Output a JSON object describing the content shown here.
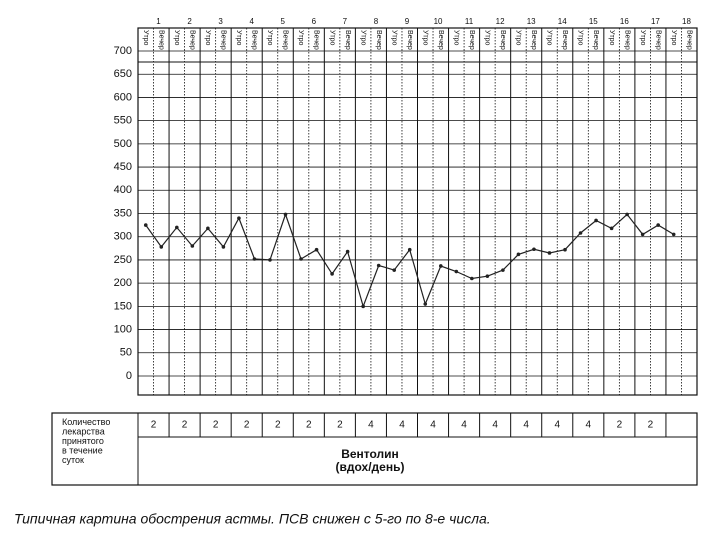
{
  "chart_data": {
    "type": "line",
    "categories": [
      "1",
      "2",
      "3",
      "4",
      "5",
      "6",
      "7",
      "8",
      "9",
      "10",
      "11",
      "12",
      "13",
      "14",
      "15",
      "16",
      "17",
      "18"
    ],
    "series": [
      {
        "name": "Утро",
        "color": "#222222",
        "values": [
          325,
          320,
          318,
          340,
          250,
          252,
          220,
          150,
          228,
          155,
          225,
          215,
          262,
          265,
          308,
          318,
          305,
          305
        ]
      },
      {
        "name": "Вечер",
        "color": "#222222",
        "values": [
          278,
          280,
          278,
          252,
          348,
          272,
          268,
          238,
          272,
          237,
          210,
          228,
          273,
          272,
          335,
          348,
          325,
          null
        ]
      }
    ],
    "ylim": [
      0,
      700
    ],
    "yticks": [
      0,
      50,
      100,
      150,
      200,
      250,
      300,
      350,
      400,
      450,
      500,
      550,
      600,
      650,
      700
    ],
    "grid": true,
    "medication": {
      "label": "Количество лекарства принятого в течение суток",
      "values": [
        2,
        2,
        2,
        2,
        2,
        2,
        2,
        4,
        4,
        4,
        4,
        4,
        4,
        4,
        4,
        2,
        2,
        null
      ],
      "drug": "Вентолин",
      "unit": "(вдох/день)"
    },
    "caption": "Типичная картина обострения астмы. ПСВ снижен с 5-го по 8-е  числа."
  }
}
